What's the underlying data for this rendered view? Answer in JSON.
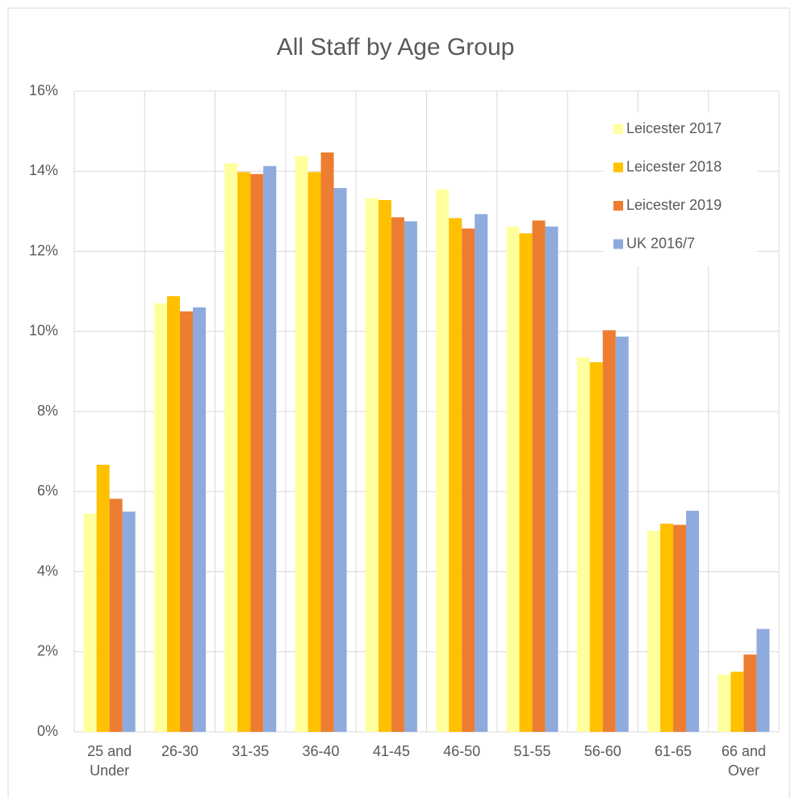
{
  "chart_data": {
    "type": "bar",
    "title": "All Staff by Age Group",
    "categories": [
      "25 and Under",
      "26-30",
      "31-35",
      "36-40",
      "41-45",
      "46-50",
      "51-55",
      "56-60",
      "61-65",
      "66 and Over"
    ],
    "series": [
      {
        "name": "Leicester 2017",
        "color": "#ffff9e",
        "values": [
          5.45,
          10.7,
          14.2,
          14.38,
          13.33,
          13.55,
          12.62,
          9.35,
          5.02,
          1.43
        ]
      },
      {
        "name": "Leicester 2018",
        "color": "#ffc000",
        "values": [
          6.67,
          10.88,
          13.98,
          13.98,
          13.28,
          12.83,
          12.45,
          9.23,
          5.2,
          1.5
        ]
      },
      {
        "name": "Leicester 2019",
        "color": "#ed7d31",
        "values": [
          5.82,
          10.5,
          13.93,
          14.47,
          12.85,
          12.57,
          12.77,
          10.03,
          5.17,
          1.93
        ]
      },
      {
        "name": "UK 2016/7",
        "color": "#8faadc",
        "values": [
          5.5,
          10.6,
          14.13,
          13.58,
          12.75,
          12.93,
          12.62,
          9.87,
          5.52,
          2.57
        ]
      }
    ],
    "ylim": [
      0,
      16
    ],
    "yticks": [
      {
        "value": 0,
        "label": "0%"
      },
      {
        "value": 2,
        "label": "2%"
      },
      {
        "value": 4,
        "label": "4%"
      },
      {
        "value": 6,
        "label": "6%"
      },
      {
        "value": 8,
        "label": "8%"
      },
      {
        "value": 10,
        "label": "10%"
      },
      {
        "value": 12,
        "label": "12%"
      },
      {
        "value": 14,
        "label": "14%"
      },
      {
        "value": 16,
        "label": "16%"
      }
    ],
    "grid": true,
    "legend": "upper right"
  }
}
